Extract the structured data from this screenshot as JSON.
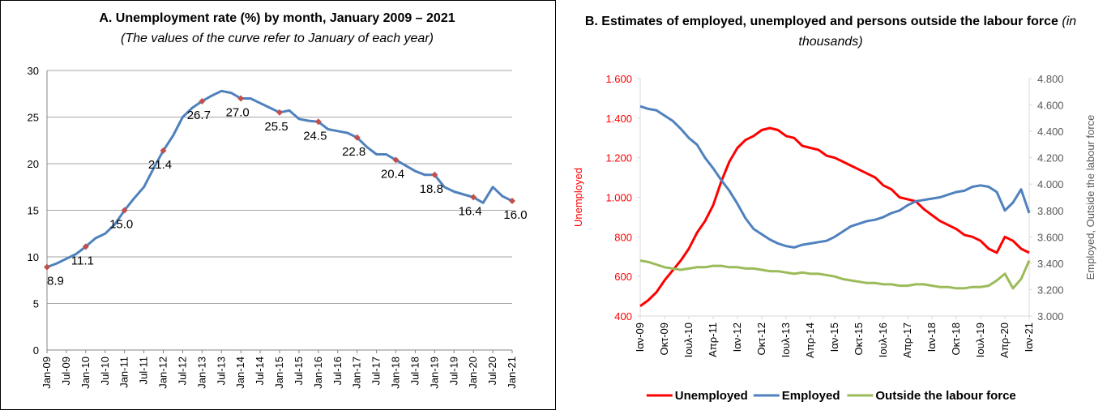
{
  "chart_data": [
    {
      "type": "line",
      "title": "A. Unemployment rate (%) by month, January 2009 – 2021",
      "subtitle": "(The values of the curve refer to January of each year)",
      "categories": [
        "Jan-09",
        null,
        "Jul-09",
        null,
        "Jan-10",
        null,
        "Jul-10",
        null,
        "Jan-11",
        null,
        "Jul-11",
        null,
        "Jan-12",
        null,
        "Jul-12",
        null,
        "Jan-13",
        null,
        "Jul-13",
        null,
        "Jan-14",
        null,
        "Jul-14",
        null,
        "Jan-15",
        null,
        "Jul-15",
        null,
        "Jan-16",
        null,
        "Jul-16",
        null,
        "Jan-17",
        null,
        "Jul-17",
        null,
        "Jan-18",
        null,
        "Jul-18",
        null,
        "Jan-19",
        null,
        "Jul-19",
        null,
        "Jan-20",
        null,
        "Jul-20",
        null,
        "Jan-21"
      ],
      "series": [
        {
          "color": "#4f81bd",
          "marker_color": "#c0504d",
          "values": [
            8.9,
            9.3,
            9.8,
            10.3,
            11.1,
            12.0,
            12.5,
            13.5,
            15.0,
            16.3,
            17.5,
            19.5,
            21.4,
            23.0,
            25.0,
            26.0,
            26.7,
            27.3,
            27.8,
            27.6,
            27.0,
            27.0,
            26.5,
            26.0,
            25.5,
            25.7,
            24.8,
            24.6,
            24.5,
            23.7,
            23.5,
            23.3,
            22.8,
            21.8,
            21.0,
            21.0,
            20.4,
            19.8,
            19.2,
            18.8,
            18.8,
            17.5,
            17.0,
            16.7,
            16.4,
            15.8,
            17.5,
            16.5,
            16.0
          ],
          "value_labels": [
            "8.9",
            null,
            null,
            null,
            "11.1",
            null,
            null,
            null,
            "15.0",
            null,
            null,
            null,
            "21.4",
            null,
            null,
            null,
            "26.7",
            null,
            null,
            null,
            "27.0",
            null,
            null,
            null,
            "25.5",
            null,
            null,
            null,
            "24.5",
            null,
            null,
            null,
            "22.8",
            null,
            null,
            null,
            "20.4",
            null,
            null,
            null,
            "18.8",
            null,
            null,
            null,
            "16.4",
            null,
            null,
            null,
            "16.0"
          ]
        }
      ],
      "ylim": [
        0,
        30
      ],
      "yticks": [
        0,
        5,
        10,
        15,
        20,
        25,
        30
      ],
      "grid": true
    },
    {
      "type": "line",
      "title": "B. Estimates of employed, unemployed and persons outside the labour force",
      "subtitle": "(in thousands)",
      "categories": [
        "Ιαν-09",
        null,
        null,
        "Οκτ-09",
        null,
        null,
        "Ιουλ-10",
        null,
        null,
        "Απρ-11",
        null,
        null,
        "Ιαν-12",
        null,
        null,
        "Οκτ-12",
        null,
        null,
        "Ιουλ-13",
        null,
        null,
        "Απρ-14",
        null,
        null,
        "Ιαν-15",
        null,
        null,
        "Οκτ-15",
        null,
        null,
        "Ιουλ-16",
        null,
        null,
        "Απρ-17",
        null,
        null,
        "Ιαν-18",
        null,
        null,
        "Οκτ-18",
        null,
        null,
        "Ιουλ-19",
        null,
        null,
        "Απρ-20",
        null,
        null,
        "Ιαν-21"
      ],
      "series": [
        {
          "name": "Unemployed",
          "color": "#ff0000",
          "values": [
            450,
            480,
            520,
            580,
            630,
            680,
            740,
            820,
            880,
            960,
            1080,
            1180,
            1250,
            1290,
            1310,
            1340,
            1350,
            1340,
            1310,
            1300,
            1260,
            1250,
            1240,
            1210,
            1200,
            1180,
            1160,
            1140,
            1120,
            1100,
            1060,
            1040,
            1000,
            990,
            980,
            940,
            910,
            880,
            860,
            840,
            810,
            800,
            780,
            740,
            720,
            800,
            780,
            740,
            720
          ]
        },
        {
          "name": "Employed",
          "color": "#4f81bd",
          "axis": "y2",
          "values": [
            4590,
            4570,
            4560,
            4520,
            4480,
            4420,
            4350,
            4300,
            4200,
            4120,
            4030,
            3950,
            3850,
            3740,
            3660,
            3620,
            3580,
            3550,
            3530,
            3520,
            3540,
            3550,
            3560,
            3570,
            3600,
            3640,
            3680,
            3700,
            3720,
            3730,
            3750,
            3780,
            3800,
            3840,
            3870,
            3880,
            3890,
            3900,
            3920,
            3940,
            3950,
            3980,
            3990,
            3980,
            3940,
            3800,
            3860,
            3960,
            3780
          ]
        },
        {
          "name": "Outside the labour force",
          "color": "#9bbb59",
          "axis": "y2",
          "values": [
            3420,
            3410,
            3390,
            3370,
            3360,
            3350,
            3360,
            3370,
            3370,
            3380,
            3380,
            3370,
            3370,
            3360,
            3360,
            3350,
            3340,
            3340,
            3330,
            3320,
            3330,
            3320,
            3320,
            3310,
            3300,
            3280,
            3270,
            3260,
            3250,
            3250,
            3240,
            3240,
            3230,
            3230,
            3240,
            3240,
            3230,
            3220,
            3220,
            3210,
            3210,
            3220,
            3220,
            3230,
            3270,
            3320,
            3210,
            3280,
            3420
          ]
        }
      ],
      "ylabel": "Unemployed",
      "y2label": "Employed, Outside the labour force",
      "yaxis_color": "#ff0000",
      "ylim": [
        400,
        1600
      ],
      "yticks": [
        400,
        600,
        800,
        {
          "value": 1000,
          "label": "1.000"
        },
        {
          "value": 1200,
          "label": "1.200"
        },
        {
          "value": 1400,
          "label": "1.400"
        },
        {
          "value": 1600,
          "label": "1.600"
        }
      ],
      "y2lim": [
        3000,
        4800
      ],
      "y2ticks": [
        {
          "value": 3000,
          "label": "3.000"
        },
        {
          "value": 3200,
          "label": "3.200"
        },
        {
          "value": 3400,
          "label": "3.400"
        },
        {
          "value": 3600,
          "label": "3.600"
        },
        {
          "value": 3800,
          "label": "3.800"
        },
        {
          "value": 4000,
          "label": "4.000"
        },
        {
          "value": 4200,
          "label": "4.200"
        },
        {
          "value": 4400,
          "label": "4.400"
        },
        {
          "value": 4600,
          "label": "4.600"
        },
        {
          "value": 4800,
          "label": "4.800"
        }
      ],
      "grid": false,
      "legend": "bottom"
    }
  ]
}
